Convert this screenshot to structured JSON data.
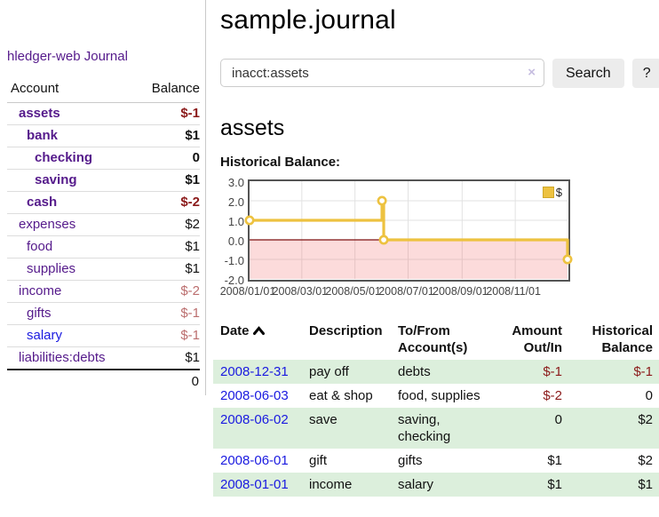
{
  "app": {
    "brand": "hledger-web"
  },
  "colors": {
    "link_purple": "#551a8b",
    "link_blue": "#1a1ae0",
    "negative_strong": "#8b1a1a",
    "negative_soft": "#bb6e6e",
    "row_highlight": "#dcefdc",
    "series_yellow": "#edc240"
  },
  "sidebar": {
    "journal_label": "Journal",
    "accounts": {
      "headers": {
        "account": "Account",
        "balance": "Balance"
      },
      "rows": [
        {
          "name": "assets",
          "balance": "$-1"
        },
        {
          "name": "bank",
          "balance": "$1"
        },
        {
          "name": "checking",
          "balance": "0"
        },
        {
          "name": "saving",
          "balance": "$1"
        },
        {
          "name": "cash",
          "balance": "$-2"
        },
        {
          "name": "expenses",
          "balance": "$2"
        },
        {
          "name": "food",
          "balance": "$1"
        },
        {
          "name": "supplies",
          "balance": "$1"
        },
        {
          "name": "income",
          "balance": "$-2"
        },
        {
          "name": "gifts",
          "balance": "$-1"
        },
        {
          "name": "salary",
          "balance": "$-1"
        },
        {
          "name": "liabilities:debts",
          "balance": "$1"
        }
      ],
      "total": "0"
    }
  },
  "main": {
    "title": "sample.journal",
    "search": {
      "query": "inacct:assets",
      "clear_icon": "×",
      "search_button": "Search",
      "help_button": "?"
    },
    "account_heading": "assets",
    "chart_heading": "Historical Balance:"
  },
  "chart_data": {
    "type": "line",
    "step": true,
    "title": "Historical Balance",
    "x_range": [
      "2008-01-01",
      "2008-12-31"
    ],
    "ylim": [
      -2,
      3
    ],
    "yticks": [
      3.0,
      2.0,
      1.0,
      0.0,
      -1.0,
      -2.0
    ],
    "xticks": [
      {
        "date": "2008-01-01",
        "label": "2008/01/01"
      },
      {
        "date": "2008-03-01",
        "label": "2008/03/01"
      },
      {
        "date": "2008-05-01",
        "label": "2008/05/01"
      },
      {
        "date": "2008-07-01",
        "label": "2008/07/01"
      },
      {
        "date": "2008-09-01",
        "label": "2008/09/01"
      },
      {
        "date": "2008-11-01",
        "label": "2008/11/01"
      }
    ],
    "series": [
      {
        "name": "$",
        "color": "#edc240",
        "points": [
          [
            "2008-01-01",
            1
          ],
          [
            "2008-06-01",
            2
          ],
          [
            "2008-06-03",
            0
          ],
          [
            "2008-12-31",
            -1
          ]
        ]
      }
    ],
    "grid": true,
    "legend_position": "top-right",
    "zero_line_color": "#7d1010",
    "below_zero_fill": "rgba(240,90,90,0.22)"
  },
  "register_table": {
    "headers": {
      "date": "Date",
      "description": "Description",
      "accounts": "To/From Account(s)",
      "amount": "Amount Out/In",
      "balance": "Historical Balance"
    },
    "rows": [
      {
        "date": "2008-12-31",
        "description": "pay off",
        "accounts": "debts",
        "amount": "$-1",
        "balance": "$-1"
      },
      {
        "date": "2008-06-03",
        "description": "eat & shop",
        "accounts": "food, supplies",
        "amount": "$-2",
        "balance": "0"
      },
      {
        "date": "2008-06-02",
        "description": "save",
        "accounts": "saving, checking",
        "amount": "0",
        "balance": "$2"
      },
      {
        "date": "2008-06-01",
        "description": "gift",
        "accounts": "gifts",
        "amount": "$1",
        "balance": "$2"
      },
      {
        "date": "2008-01-01",
        "description": "income",
        "accounts": "salary",
        "amount": "$1",
        "balance": "$1"
      }
    ]
  }
}
